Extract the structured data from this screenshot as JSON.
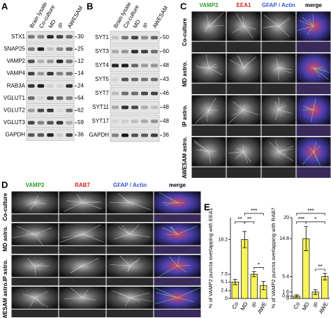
{
  "panel_a": {
    "label": "A",
    "columns": [
      "Brain lysate",
      "Co-culture",
      "MD",
      "IP",
      "AWESAM"
    ],
    "rows": [
      {
        "name": "STX1",
        "kda": "30"
      },
      {
        "name": "SNAP25",
        "kda": "25"
      },
      {
        "name": "VAMP2",
        "kda": "12"
      },
      {
        "name": "VAMP4",
        "kda": "14"
      },
      {
        "name": "RAB3A",
        "kda": "24"
      },
      {
        "name": "VGLUT1",
        "kda": "64"
      },
      {
        "name": "VGLUT2",
        "kda": "62"
      },
      {
        "name": "VGLUT3",
        "kda": "59"
      },
      {
        "name": "GAPDH",
        "kda": "36"
      }
    ]
  },
  "panel_b": {
    "label": "B",
    "columns": [
      "Brain lysate",
      "Co-culture",
      "MD",
      "IP",
      "AWESAM"
    ],
    "rows": [
      {
        "name": "SYT1",
        "kda": "50"
      },
      {
        "name": "SYT3",
        "kda": "60"
      },
      {
        "name": "SYT4",
        "kda": "48"
      },
      {
        "name": "SYT5",
        "kda": "43"
      },
      {
        "name": "SYT7",
        "kda": "46"
      },
      {
        "name": "SYT11",
        "kda": "48"
      },
      {
        "name": "SYT17",
        "kda": "48"
      },
      {
        "name": "GAPDH",
        "kda": "36"
      }
    ]
  },
  "panel_c": {
    "label": "C",
    "channels": [
      "VAMP2",
      "EEA1",
      "GFAP / Actin",
      "merge"
    ],
    "rows": [
      "Co-culture",
      "MD astro.",
      "IP astro.",
      "AWESAM astro."
    ]
  },
  "panel_d": {
    "label": "D",
    "channels": [
      "VAMP2",
      "RAB7",
      "GFAP / Actin",
      "merge"
    ],
    "rows": [
      "Co-culture",
      "MD astro.",
      "IP astro.",
      "AWESAM astro."
    ]
  },
  "panel_e": {
    "label": "E"
  },
  "chart_data": [
    {
      "type": "bar",
      "ylabel": "% of VAMP2 puncta overlapping with EEA1",
      "categories": [
        "Co",
        "MD",
        "IP",
        "AWE"
      ],
      "values": [
        5.1,
        18.2,
        7.5,
        4.0
      ],
      "errors": [
        0.8,
        2.5,
        0.8,
        1.3
      ],
      "color": "#f7f35a",
      "ylim": [
        0,
        25
      ],
      "yticks": [
        0,
        2.4,
        5.1,
        7.5,
        18.2
      ],
      "significance": [
        "***",
        "**",
        "**",
        "*"
      ]
    },
    {
      "type": "bar",
      "ylabel": "% of VAMP2 puncta overlapping with RAB7",
      "categories": [
        "Co",
        "MD",
        "IP",
        "AWE"
      ],
      "values": [
        0.6,
        14.8,
        1.6,
        5.4
      ],
      "errors": [
        0.3,
        3.0,
        0.6,
        0.8
      ],
      "color": "#f7f35a",
      "ylim": [
        0,
        20
      ],
      "yticks": [
        0,
        0.6,
        1.6,
        5.4,
        14.8,
        20
      ],
      "significance": [
        "***",
        "***",
        "*",
        "**"
      ]
    }
  ]
}
